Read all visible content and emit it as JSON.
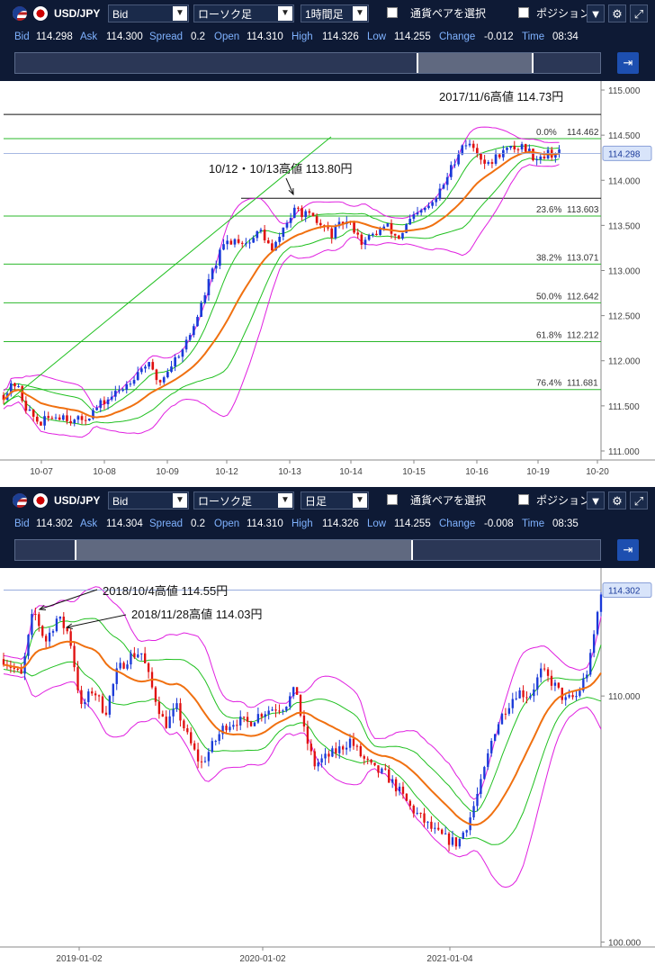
{
  "panels": [
    {
      "toolbar": {
        "symbol": "USD/JPY",
        "price_type": "Bid",
        "chart_type": "ローソク足",
        "timeframe": "1時間足",
        "pair_select": "通貨ペアを選択",
        "position": "ポジション"
      },
      "quote": {
        "bid_label": "Bid",
        "bid": "114.298",
        "ask_label": "Ask",
        "ask": "114.300",
        "spread_label": "Spread",
        "spread": "0.2",
        "open_label": "Open",
        "open": "114.310",
        "high_label": "High",
        "high": "114.326",
        "low_label": "Low",
        "low": "114.255",
        "change_label": "Change",
        "change": "-0.012",
        "time_label": "Time",
        "time": "08:34"
      }
    },
    {
      "toolbar": {
        "symbol": "USD/JPY",
        "price_type": "Bid",
        "chart_type": "ローソク足",
        "timeframe": "日足",
        "pair_select": "通貨ペアを選択",
        "position": "ポジション"
      },
      "quote": {
        "bid_label": "Bid",
        "bid": "114.302",
        "ask_label": "Ask",
        "ask": "114.304",
        "spread_label": "Spread",
        "spread": "0.2",
        "open_label": "Open",
        "open": "114.310",
        "high_label": "High",
        "high": "114.326",
        "low_label": "Low",
        "low": "114.255",
        "change_label": "Change",
        "change": "-0.008",
        "time_label": "Time",
        "time": "08:35"
      }
    }
  ],
  "chart_data": [
    {
      "type": "candlestick",
      "ylim": [
        110.9,
        115.1
      ],
      "yticks": [
        "115.000",
        "114.500",
        "114.000",
        "113.500",
        "113.000",
        "112.500",
        "112.000",
        "111.500",
        "111.000"
      ],
      "xticks": [
        "10-07",
        "10-08",
        "10-09",
        "10-12",
        "10-13",
        "10-14",
        "10-15",
        "10-16",
        "10-19",
        "10-20"
      ],
      "current_price": "114.298",
      "close_path": [
        [
          0,
          111.62
        ],
        [
          0.02,
          111.75
        ],
        [
          0.04,
          111.45
        ],
        [
          0.06,
          111.3
        ],
        [
          0.08,
          111.38
        ],
        [
          0.1,
          111.4
        ],
        [
          0.12,
          111.32
        ],
        [
          0.14,
          111.38
        ],
        [
          0.16,
          111.5
        ],
        [
          0.18,
          111.6
        ],
        [
          0.2,
          111.7
        ],
        [
          0.22,
          111.85
        ],
        [
          0.24,
          111.98
        ],
        [
          0.26,
          111.75
        ],
        [
          0.27,
          111.85
        ],
        [
          0.29,
          112.05
        ],
        [
          0.31,
          112.25
        ],
        [
          0.33,
          112.6
        ],
        [
          0.35,
          113.0
        ],
        [
          0.37,
          113.3
        ],
        [
          0.39,
          113.35
        ],
        [
          0.41,
          113.3
        ],
        [
          0.43,
          113.45
        ],
        [
          0.45,
          113.2
        ],
        [
          0.47,
          113.5
        ],
        [
          0.49,
          113.68
        ],
        [
          0.51,
          113.6
        ],
        [
          0.53,
          113.5
        ],
        [
          0.55,
          113.4
        ],
        [
          0.57,
          113.55
        ],
        [
          0.59,
          113.45
        ],
        [
          0.6,
          113.3
        ],
        [
          0.62,
          113.4
        ],
        [
          0.64,
          113.5
        ],
        [
          0.66,
          113.35
        ],
        [
          0.68,
          113.55
        ],
        [
          0.7,
          113.65
        ],
        [
          0.72,
          113.75
        ],
        [
          0.74,
          114.0
        ],
        [
          0.76,
          114.3
        ],
        [
          0.77,
          114.42
        ],
        [
          0.79,
          114.35
        ],
        [
          0.81,
          114.15
        ],
        [
          0.83,
          114.3
        ],
        [
          0.85,
          114.35
        ],
        [
          0.87,
          114.38
        ],
        [
          0.89,
          114.25
        ],
        [
          0.91,
          114.3
        ],
        [
          0.93,
          114.3
        ]
      ],
      "fib_levels": [
        {
          "label": "0.0%",
          "price": "114.462",
          "value": 114.462
        },
        {
          "label": "23.6%",
          "price": "113.603",
          "value": 113.603
        },
        {
          "label": "38.2%",
          "price": "113.071",
          "value": 113.071
        },
        {
          "label": "50.0%",
          "price": "112.642",
          "value": 112.642
        },
        {
          "label": "61.8%",
          "price": "112.212",
          "value": 112.212
        },
        {
          "label": "76.4%",
          "price": "111.681",
          "value": 111.681
        }
      ],
      "hlines": [
        {
          "value": 114.73
        },
        {
          "value": 113.8
        }
      ],
      "annotations": [
        {
          "text": "2017/11/6高値 114.73円"
        },
        {
          "text": "10/12・10/13高値 113.80円"
        }
      ]
    },
    {
      "type": "candlestick",
      "ylim": [
        99.8,
        115.2
      ],
      "yticks": [
        "110.000",
        "100.000"
      ],
      "xticks": [
        "2019-01-02",
        "2020-01-02",
        "2021-01-04"
      ],
      "current_price": "114.302",
      "close_path": [
        [
          0,
          111.5
        ],
        [
          0.03,
          110.8
        ],
        [
          0.05,
          113.5
        ],
        [
          0.07,
          112.2
        ],
        [
          0.09,
          113.2
        ],
        [
          0.11,
          112.5
        ],
        [
          0.13,
          109.5
        ],
        [
          0.15,
          110.3
        ],
        [
          0.17,
          109.3
        ],
        [
          0.19,
          111.0
        ],
        [
          0.21,
          111.6
        ],
        [
          0.23,
          111.8
        ],
        [
          0.25,
          110.2
        ],
        [
          0.27,
          108.8
        ],
        [
          0.29,
          109.5
        ],
        [
          0.31,
          108.2
        ],
        [
          0.33,
          107.2
        ],
        [
          0.35,
          108.0
        ],
        [
          0.37,
          108.8
        ],
        [
          0.39,
          109.0
        ],
        [
          0.41,
          108.9
        ],
        [
          0.43,
          109.3
        ],
        [
          0.45,
          109.5
        ],
        [
          0.47,
          109.6
        ],
        [
          0.49,
          110.3
        ],
        [
          0.5,
          108.8
        ],
        [
          0.52,
          107.2
        ],
        [
          0.54,
          107.5
        ],
        [
          0.56,
          107.8
        ],
        [
          0.58,
          108.2
        ],
        [
          0.6,
          107.5
        ],
        [
          0.62,
          107.0
        ],
        [
          0.64,
          106.8
        ],
        [
          0.66,
          106.2
        ],
        [
          0.68,
          105.5
        ],
        [
          0.7,
          105.0
        ],
        [
          0.72,
          104.5
        ],
        [
          0.74,
          104.2
        ],
        [
          0.76,
          104.0
        ],
        [
          0.78,
          105.0
        ],
        [
          0.8,
          106.5
        ],
        [
          0.82,
          108.5
        ],
        [
          0.84,
          109.5
        ],
        [
          0.86,
          110.2
        ],
        [
          0.88,
          110.0
        ],
        [
          0.9,
          111.0
        ],
        [
          0.92,
          110.5
        ],
        [
          0.94,
          109.8
        ],
        [
          0.96,
          110.0
        ],
        [
          0.98,
          111.2
        ],
        [
          1.0,
          114.3
        ]
      ],
      "annotations": [
        {
          "text": "2018/10/4高値 114.55円"
        },
        {
          "text": "2018/11/28高値 114.03円"
        }
      ]
    }
  ]
}
